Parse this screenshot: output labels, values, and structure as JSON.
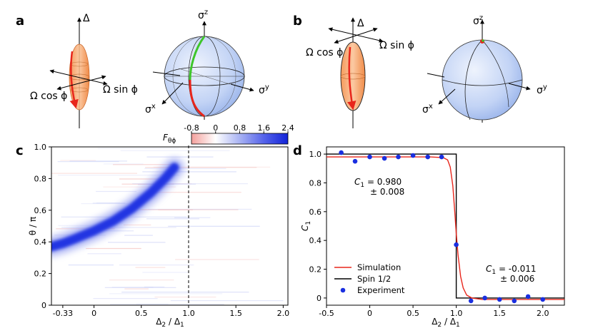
{
  "panels": {
    "a": {
      "letter": "a",
      "axis_delta": "Δ",
      "axis_cos": "Ω cos ϕ",
      "axis_sin": "Ω sin ϕ",
      "bloch_z": "σ",
      "bloch_z_sup": "z",
      "bloch_x": "σ",
      "bloch_x_sup": "x",
      "bloch_y": "σ",
      "bloch_y_sup": "y"
    },
    "b": {
      "letter": "b",
      "axis_delta": "Δ",
      "axis_cos": "Ω cos ϕ",
      "axis_sin": "Ω sin ϕ",
      "bloch_z": "σ",
      "bloch_z_sup": "z",
      "bloch_x": "σ",
      "bloch_x_sup": "x",
      "bloch_y": "σ",
      "bloch_y_sup": "y"
    }
  },
  "colors": {
    "red": "#e8261c",
    "green": "#3ec62a",
    "ellipsoid": "#f7b27f",
    "sphere": "#b9cdf4",
    "blue": "#1a2fe0"
  },
  "chart_data": [
    {
      "panel": "c",
      "type": "heatmap",
      "letter": "c",
      "xlabel": "Δ2 / Δ1",
      "xlabel_main": "Δ",
      "xlabel_sub1": "2",
      "xlabel_mid": " / Δ",
      "xlabel_sub2": "1",
      "ylabel": "θ / π",
      "x_ticks": [
        "-0.33",
        "0",
        "0.5",
        "1.0",
        "1.5",
        "2.0"
      ],
      "x_tick_values": [
        -0.33,
        0,
        0.5,
        1.0,
        1.5,
        2.0
      ],
      "y_ticks": [
        "0",
        "0.2",
        "0.4",
        "0.6",
        "0.8",
        "1.0"
      ],
      "y_tick_values": [
        0,
        0.2,
        0.4,
        0.6,
        0.8,
        1.0
      ],
      "xlim": [
        -0.45,
        2.05
      ],
      "ylim": [
        0,
        1.0
      ],
      "colorbar": {
        "label": "F",
        "label_sub": "θϕ",
        "ticks": [
          "-0.8",
          "0",
          "0.8",
          "1.6",
          "2.4"
        ],
        "tick_values": [
          -0.8,
          0,
          0.8,
          1.6,
          2.4
        ],
        "range": [
          -0.8,
          2.4
        ]
      },
      "ridge": {
        "x": [
          -0.45,
          -0.33,
          -0.2,
          0,
          0.2,
          0.4,
          0.6,
          0.75,
          0.85
        ],
        "y": [
          0.37,
          0.39,
          0.42,
          0.47,
          0.53,
          0.61,
          0.71,
          0.8,
          0.87
        ]
      },
      "vline_x": 1.0
    },
    {
      "panel": "d",
      "type": "line",
      "letter": "d",
      "xlabel": "Δ2 / Δ1",
      "xlabel_main": "Δ",
      "xlabel_sub1": "2",
      "xlabel_mid": " / Δ",
      "xlabel_sub2": "1",
      "ylabel": "C",
      "ylabel_sub": "1",
      "xlim": [
        -0.5,
        2.25
      ],
      "ylim": [
        -0.05,
        1.05
      ],
      "x_ticks": [
        "-0.5",
        "0",
        "0.5",
        "1.0",
        "1.5",
        "2.0"
      ],
      "x_tick_values": [
        -0.5,
        0,
        0.5,
        1.0,
        1.5,
        2.0
      ],
      "y_ticks": [
        "0",
        "0.2",
        "0.4",
        "0.6",
        "0.8",
        "1.0"
      ],
      "y_tick_values": [
        0,
        0.2,
        0.4,
        0.6,
        0.8,
        1.0
      ],
      "annotations": {
        "left_c": "C",
        "left_sub": "1",
        "left_val": " = 0.980",
        "left_err": "± 0.008",
        "right_c": "C",
        "right_sub": "1",
        "right_val": " = -0.011",
        "right_err": "±  0.006"
      },
      "legend": {
        "simulation": "Simulation",
        "spin": "Spin 1/2",
        "experiment": "Experiment"
      },
      "simulation": {
        "x": [
          -0.5,
          0.7,
          0.85,
          0.9,
          0.93,
          0.96,
          0.98,
          1.0,
          1.02,
          1.05,
          1.08,
          1.12,
          1.18,
          1.3,
          2.25
        ],
        "y": [
          0.98,
          0.98,
          0.975,
          0.96,
          0.91,
          0.78,
          0.62,
          0.45,
          0.3,
          0.15,
          0.07,
          0.02,
          0.0,
          -0.01,
          -0.01
        ]
      },
      "spin": {
        "x": [
          -0.5,
          1.0,
          1.0,
          2.25
        ],
        "y": [
          1.0,
          1.0,
          0.0,
          0.0
        ]
      },
      "experiment": {
        "x": [
          -0.33,
          -0.17,
          0.0,
          0.17,
          0.33,
          0.5,
          0.67,
          0.83,
          1.0,
          1.17,
          1.33,
          1.5,
          1.67,
          1.83,
          2.0
        ],
        "y": [
          1.01,
          0.95,
          0.98,
          0.97,
          0.98,
          0.99,
          0.98,
          0.98,
          0.37,
          -0.02,
          0.0,
          -0.01,
          -0.02,
          0.01,
          -0.01
        ]
      }
    }
  ]
}
